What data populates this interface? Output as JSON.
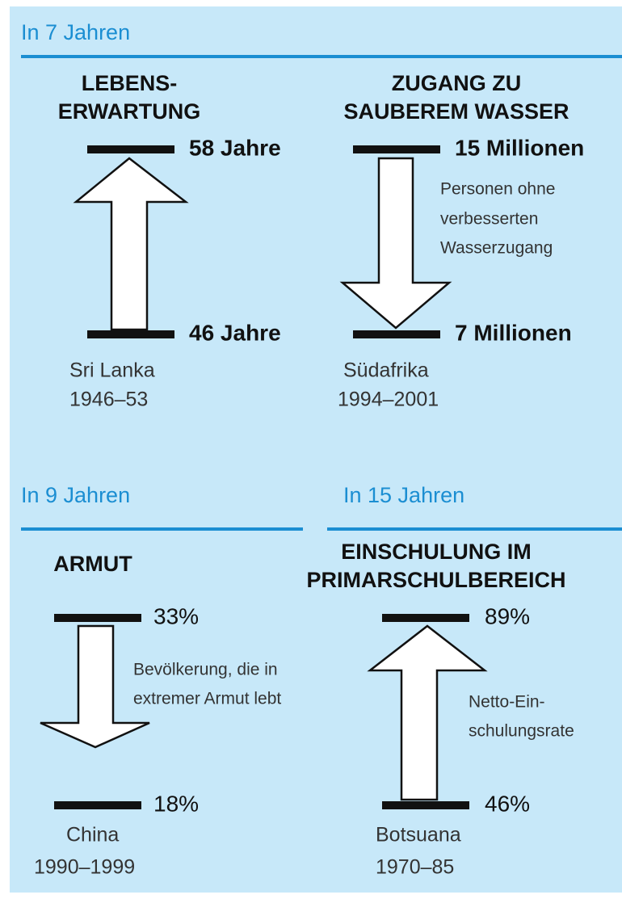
{
  "sections": [
    {
      "heading": "In 7 Jahren"
    },
    {
      "heading": "In 9 Jahren"
    },
    {
      "heading": "In 15 Jahren"
    }
  ],
  "panels": [
    {
      "title": [
        "LEBENS-",
        "ERWARTUNG"
      ],
      "top": "58 Jahre",
      "bottom": "46 Jahre",
      "note": [],
      "country": "Sri Lanka",
      "period": "1946–53"
    },
    {
      "title": [
        "ZUGANG ZU",
        "SAUBEREM WASSER"
      ],
      "top": "15 Millionen",
      "bottom": "7 Millionen",
      "note": [
        "Personen ohne",
        "verbesserten",
        "Wasserzugang"
      ],
      "country": "Südafrika",
      "period": "1994–2001"
    },
    {
      "title": [
        "ARMUT"
      ],
      "top": "33%",
      "bottom": "18%",
      "note": [
        "Bevölkerung, die in",
        "extremer Armut lebt"
      ],
      "country": "China",
      "period": "1990–1999"
    },
    {
      "title": [
        "EINSCHULUNG IM",
        "PRIMARSCHULBEREICH"
      ],
      "top": "89%",
      "bottom": "46%",
      "note": [
        "Netto-Ein-",
        "schulungsrate"
      ],
      "country": "Botsuana",
      "period": "1970–85"
    }
  ]
}
